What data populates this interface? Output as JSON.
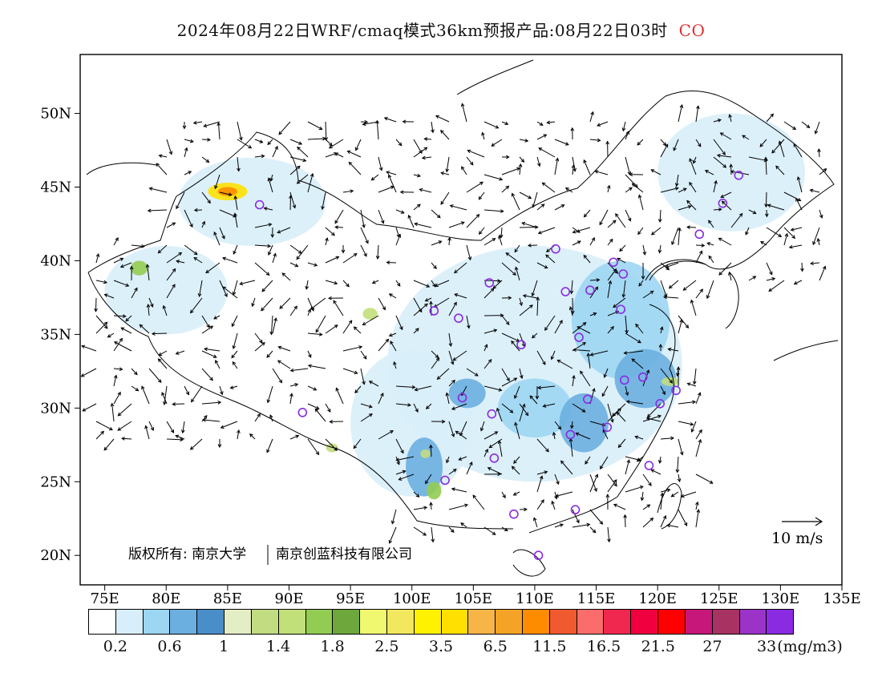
{
  "title": {
    "main": "2024年08月22日WRF/cmaq模式36km预报产品:08月22日03时",
    "species": "CO"
  },
  "axes": {
    "lon_ticks": [
      "75E",
      "80E",
      "85E",
      "90E",
      "95E",
      "100E",
      "105E",
      "110E",
      "115E",
      "120E",
      "125E",
      "130E",
      "135E"
    ],
    "lat_ticks": [
      "50N",
      "45N",
      "40N",
      "35N",
      "30N",
      "25N",
      "20N"
    ]
  },
  "wind_reference": {
    "label": "10 m/s"
  },
  "copyright": {
    "text_a": "版权所有: 南京大学",
    "text_b": "南京创蓝科技有限公司"
  },
  "legend": {
    "colors": [
      "#ffffff",
      "#d8eefa",
      "#9dd6f3",
      "#6bafe0",
      "#4a8ec9",
      "#e4eec4",
      "#c2dc82",
      "#c2e07a",
      "#93cc52",
      "#6ea83c",
      "#f0f870",
      "#f2e85e",
      "#fff200",
      "#ffe000",
      "#f7b447",
      "#f5a327",
      "#fd8c00",
      "#f05a2e",
      "#fd6c6c",
      "#f0284f",
      "#f0003f",
      "#ff0000",
      "#c8177a",
      "#a83262",
      "#9b33c8",
      "#8a2be2"
    ],
    "labels": [
      "0.2",
      "0.6",
      "1",
      "1.4",
      "1.8",
      "2.5",
      "3.5",
      "6.5",
      "11.5",
      "16.5",
      "21.5",
      "27",
      "33"
    ],
    "unit": "(mg/m3)"
  },
  "stations": [
    {
      "lon": 87.6,
      "lat": 43.8
    },
    {
      "lon": 91.1,
      "lat": 29.7
    },
    {
      "lon": 101.8,
      "lat": 36.6
    },
    {
      "lon": 103.8,
      "lat": 36.1
    },
    {
      "lon": 106.3,
      "lat": 38.5
    },
    {
      "lon": 104.1,
      "lat": 30.7
    },
    {
      "lon": 106.5,
      "lat": 29.6
    },
    {
      "lon": 102.7,
      "lat": 25.1
    },
    {
      "lon": 106.7,
      "lat": 26.6
    },
    {
      "lon": 108.3,
      "lat": 22.8
    },
    {
      "lon": 110.3,
      "lat": 20.0
    },
    {
      "lon": 113.3,
      "lat": 23.1
    },
    {
      "lon": 108.9,
      "lat": 34.3
    },
    {
      "lon": 111.7,
      "lat": 40.8
    },
    {
      "lon": 112.5,
      "lat": 37.9
    },
    {
      "lon": 114.5,
      "lat": 38.0
    },
    {
      "lon": 116.4,
      "lat": 39.9
    },
    {
      "lon": 117.2,
      "lat": 39.1
    },
    {
      "lon": 117.0,
      "lat": 36.7
    },
    {
      "lon": 113.6,
      "lat": 34.8
    },
    {
      "lon": 114.3,
      "lat": 30.6
    },
    {
      "lon": 112.9,
      "lat": 28.2
    },
    {
      "lon": 115.9,
      "lat": 28.7
    },
    {
      "lon": 117.3,
      "lat": 31.9
    },
    {
      "lon": 118.8,
      "lat": 32.1
    },
    {
      "lon": 120.2,
      "lat": 30.3
    },
    {
      "lon": 121.5,
      "lat": 31.2
    },
    {
      "lon": 119.3,
      "lat": 26.1
    },
    {
      "lon": 123.4,
      "lat": 41.8
    },
    {
      "lon": 125.3,
      "lat": 43.9
    },
    {
      "lon": 126.6,
      "lat": 45.8
    }
  ],
  "concentration_patches": [
    {
      "lon": 110,
      "lat": 33,
      "rx": 12,
      "ry": 8,
      "level": 1
    },
    {
      "lon": 126,
      "lat": 46,
      "rx": 6,
      "ry": 4,
      "level": 1
    },
    {
      "lon": 100,
      "lat": 29,
      "rx": 5,
      "ry": 5,
      "level": 1
    },
    {
      "lon": 80,
      "lat": 38,
      "rx": 5,
      "ry": 3,
      "level": 1
    },
    {
      "lon": 87,
      "lat": 44,
      "rx": 6,
      "ry": 3,
      "level": 1
    },
    {
      "lon": 117,
      "lat": 36,
      "rx": 4,
      "ry": 4,
      "level": 2
    },
    {
      "lon": 119,
      "lat": 32,
      "rx": 2.5,
      "ry": 2,
      "level": 3
    },
    {
      "lon": 110,
      "lat": 30,
      "rx": 3,
      "ry": 2,
      "level": 2
    },
    {
      "lon": 114,
      "lat": 29,
      "rx": 2,
      "ry": 2,
      "level": 3
    },
    {
      "lon": 104.5,
      "lat": 31,
      "rx": 1.5,
      "ry": 1,
      "level": 3
    },
    {
      "lon": 101,
      "lat": 26,
      "rx": 1.5,
      "ry": 2,
      "level": 3
    },
    {
      "lon": 85,
      "lat": 44.7,
      "rx": 1.6,
      "ry": 0.6,
      "level": 13
    },
    {
      "lon": 85,
      "lat": 44.7,
      "rx": 0.8,
      "ry": 0.3,
      "level": 16
    },
    {
      "lon": 77.8,
      "lat": 39.5,
      "rx": 0.7,
      "ry": 0.5,
      "level": 8
    },
    {
      "lon": 96.6,
      "lat": 36.4,
      "rx": 0.6,
      "ry": 0.4,
      "level": 7
    },
    {
      "lon": 101.8,
      "lat": 24.4,
      "rx": 0.6,
      "ry": 0.6,
      "level": 8
    },
    {
      "lon": 93.5,
      "lat": 27.3,
      "rx": 0.5,
      "ry": 0.3,
      "level": 6
    },
    {
      "lon": 121,
      "lat": 31.8,
      "rx": 0.7,
      "ry": 0.3,
      "level": 6
    },
    {
      "lon": 101.1,
      "lat": 26.9,
      "rx": 0.4,
      "ry": 0.3,
      "level": 6
    }
  ]
}
